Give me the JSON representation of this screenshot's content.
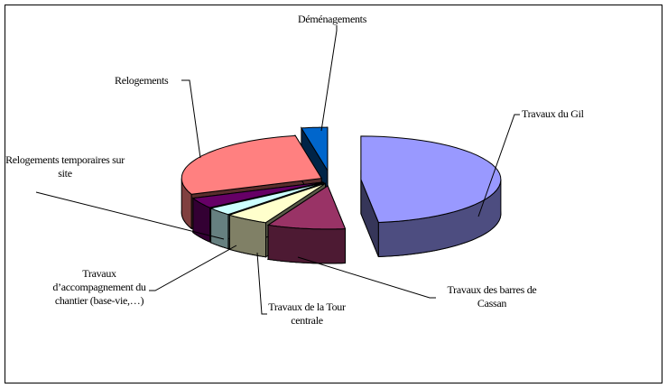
{
  "chart_data": {
    "type": "pie",
    "style": "3d-exploded",
    "legend": "none",
    "slices": [
      {
        "label": "Travaux du Gil",
        "value": 48,
        "color": "#9999FF"
      },
      {
        "label": "Travaux des barres de Cassan",
        "value": 9,
        "color": "#993366"
      },
      {
        "label": "Travaux de la Tour centrale",
        "value": 5,
        "color": "#FFFFCC"
      },
      {
        "label": "Travaux d’accompagnement du chantier (base-vie,…)",
        "value": 3,
        "color": "#CCFFFF"
      },
      {
        "label": "Relogements temporaires sur site",
        "value": 4,
        "color": "#660066"
      },
      {
        "label": "Relogements",
        "value": 28,
        "color": "#FF8080"
      },
      {
        "label": "Déménagements",
        "value": 3,
        "color": "#0066CC"
      }
    ]
  }
}
